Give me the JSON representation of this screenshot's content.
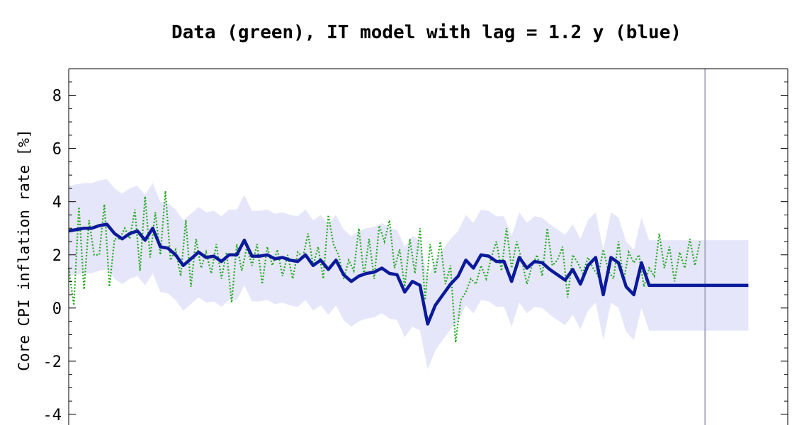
{
  "chart_data": {
    "type": "line",
    "title": "Data (green), IT model with lag = 1.2 y (blue)",
    "ylabel": "Core CPI inflation rate [%]",
    "xlabel": "",
    "ylim": [
      -4.4,
      9.0
    ],
    "xlim": [
      0,
      268
    ],
    "y_ticks": [
      -4,
      -2,
      0,
      2,
      4,
      6,
      8
    ],
    "y_tick_labels": [
      "-4",
      "-2",
      "0",
      "2",
      "4",
      "6",
      "8"
    ],
    "vline_x": 250,
    "band_halfwidth": 1.7,
    "colors": {
      "data": "#22aa22",
      "model": "#0a1a9a",
      "band": "#e6e6fa",
      "vline": "#a9a9c4"
    },
    "series": [
      {
        "name": "data",
        "style": "dotted",
        "x": [
          0,
          2,
          4,
          6,
          8,
          10,
          12,
          14,
          16,
          18,
          20,
          22,
          24,
          26,
          28,
          30,
          32,
          34,
          36,
          38,
          40,
          42,
          44,
          46,
          48,
          50,
          52,
          54,
          56,
          58,
          60,
          62,
          64,
          66,
          68,
          70,
          72,
          74,
          76,
          78,
          80,
          82,
          84,
          86,
          88,
          90,
          92,
          94,
          96,
          98,
          100,
          102,
          104,
          106,
          108,
          110,
          112,
          114,
          116,
          118,
          120,
          122,
          124,
          126,
          128,
          130,
          132,
          134,
          136,
          138,
          140,
          142,
          144,
          146,
          148,
          150,
          152,
          154,
          156,
          158,
          160,
          162,
          164,
          166,
          168,
          170,
          172,
          174,
          176,
          178,
          180,
          182,
          184,
          186,
          188,
          190,
          192,
          194,
          196,
          198,
          200,
          202,
          204,
          206,
          208,
          210,
          212,
          214,
          216,
          218,
          220,
          222,
          224,
          226,
          228,
          230,
          232,
          234,
          236,
          238,
          240,
          242,
          244,
          246,
          248
        ],
        "values": [
          1.5,
          0.1,
          3.8,
          0.7,
          3.3,
          2.0,
          2.0,
          3.9,
          0.8,
          2.6,
          2.6,
          3.0,
          2.6,
          3.7,
          1.4,
          4.2,
          1.9,
          3.6,
          2.0,
          4.4,
          1.8,
          2.2,
          1.2,
          3.3,
          0.8,
          2.6,
          1.5,
          2.1,
          1.3,
          2.4,
          1.1,
          2.1,
          0.2,
          2.4,
          1.4,
          2.3,
          1.6,
          2.4,
          0.9,
          2.3,
          1.6,
          2.2,
          1.2,
          2.0,
          1.1,
          2.1,
          1.9,
          2.8,
          1.6,
          2.3,
          1.1,
          3.5,
          2.4,
          2.0,
          1.1,
          1.8,
          1.4,
          3.0,
          1.2,
          2.6,
          1.1,
          3.1,
          2.5,
          3.3,
          1.5,
          2.2,
          0.8,
          2.6,
          1.3,
          3.0,
          0.3,
          2.4,
          1.3,
          2.5,
          0.9,
          1.6,
          -1.3,
          0.3,
          0.6,
          1.1,
          0.9,
          1.6,
          1.1,
          1.9,
          2.5,
          1.4,
          3.0,
          1.5,
          2.5,
          1.8,
          0.9,
          1.6,
          2.0,
          1.2,
          3.0,
          1.6,
          1.8,
          2.3,
          0.4,
          2.0,
          1.7,
          1.3,
          1.9,
          1.5,
          1.2,
          2.2,
          1.4,
          1.1,
          2.5,
          1.0,
          2.1,
          1.7,
          2.0,
          0.8,
          1.5,
          1.2,
          2.8,
          1.5,
          2.3,
          1.0,
          2.1,
          1.5,
          2.6,
          1.6,
          2.5
        ]
      },
      {
        "name": "model",
        "style": "solid",
        "x": [
          0,
          3,
          6,
          9,
          12,
          15,
          18,
          21,
          24,
          27,
          30,
          33,
          36,
          39,
          42,
          45,
          48,
          51,
          54,
          57,
          60,
          63,
          66,
          69,
          72,
          75,
          78,
          81,
          84,
          87,
          90,
          93,
          96,
          99,
          102,
          105,
          108,
          111,
          114,
          117,
          120,
          123,
          126,
          129,
          132,
          135,
          138,
          141,
          144,
          147,
          150,
          153,
          156,
          159,
          162,
          165,
          168,
          171,
          174,
          177,
          180,
          183,
          186,
          189,
          192,
          195,
          198,
          201,
          204,
          207,
          210,
          213,
          216,
          219,
          222,
          225,
          228,
          231,
          234,
          237,
          240,
          243,
          246,
          249,
          252,
          255,
          258,
          261,
          264,
          267
        ],
        "values": [
          2.9,
          2.95,
          3.0,
          3.0,
          3.1,
          3.15,
          2.8,
          2.6,
          2.8,
          2.9,
          2.55,
          3.0,
          2.3,
          2.25,
          2.0,
          1.6,
          1.85,
          2.1,
          1.9,
          1.95,
          1.75,
          2.0,
          2.0,
          2.55,
          1.95,
          1.95,
          2.0,
          1.85,
          1.9,
          1.8,
          1.75,
          2.0,
          1.6,
          1.8,
          1.45,
          1.8,
          1.25,
          1.0,
          1.2,
          1.3,
          1.35,
          1.5,
          1.3,
          1.25,
          0.6,
          1.0,
          0.85,
          -0.6,
          0.1,
          0.5,
          0.9,
          1.2,
          1.8,
          1.5,
          2.0,
          1.95,
          1.75,
          1.75,
          1.0,
          1.9,
          1.5,
          1.75,
          1.7,
          1.45,
          1.25,
          1.05,
          1.45,
          0.9,
          1.6,
          1.9,
          0.5,
          1.9,
          1.7,
          0.8,
          0.5,
          1.7,
          0.85,
          0.85,
          0.85,
          0.85,
          0.85,
          0.85,
          0.85,
          0.85,
          0.85,
          0.85,
          0.85,
          0.85,
          0.85,
          0.85
        ]
      }
    ]
  }
}
